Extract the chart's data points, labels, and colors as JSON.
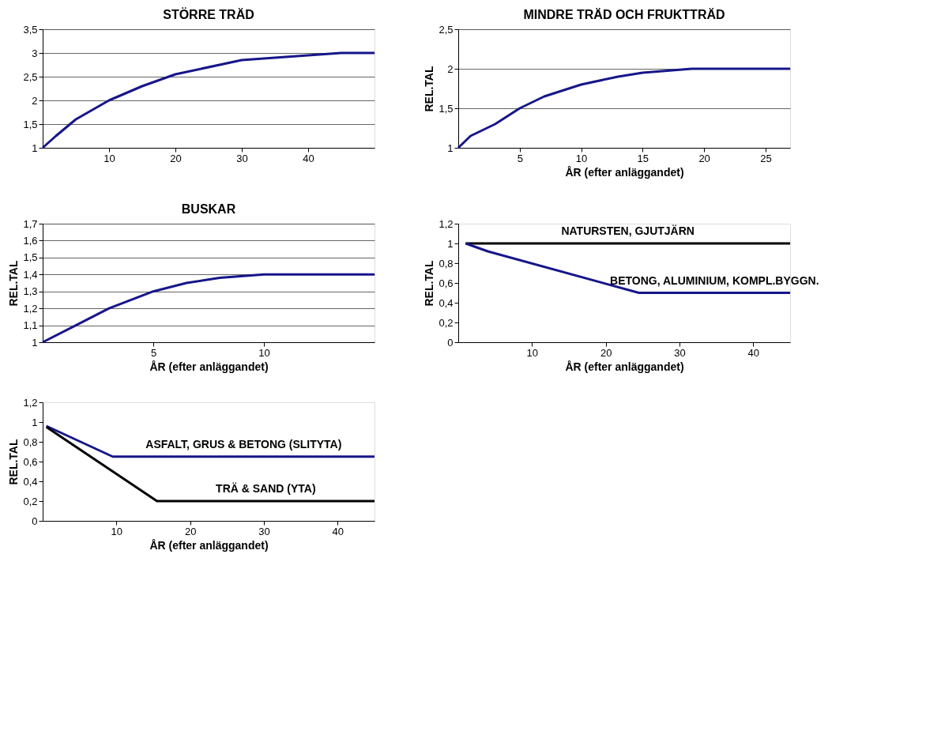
{
  "chart_data": [
    {
      "type": "line",
      "title": "STÖRRE TRÄD",
      "x": [
        0,
        2,
        5,
        10,
        15,
        20,
        30,
        45,
        50
      ],
      "series": [
        {
          "color": "#16168a",
          "values": [
            1,
            1.25,
            1.6,
            2,
            2.3,
            2.55,
            2.85,
            3,
            3
          ]
        }
      ],
      "xlim": [
        0,
        50
      ],
      "xticks": [
        10,
        20,
        30,
        40
      ],
      "ylim": [
        1,
        3.5
      ],
      "yticks": [
        1,
        {
          "value": 1.5,
          "label": "1,5"
        },
        2,
        {
          "value": 2.5,
          "label": "2,5"
        },
        3,
        {
          "value": 3.5,
          "label": "3,5"
        }
      ],
      "grid": "y"
    },
    {
      "type": "line",
      "title": "MINDRE TRÄD OCH FRUKTTRÄD",
      "xlabel": "ÅR (efter anläggandet)",
      "ylabel": "REL.TAL",
      "x": [
        0,
        1,
        3,
        5,
        7,
        10,
        13,
        15,
        19,
        27
      ],
      "series": [
        {
          "color": "#16168a",
          "values": [
            1,
            1.15,
            1.3,
            1.5,
            1.65,
            1.8,
            1.9,
            1.95,
            2,
            2
          ]
        }
      ],
      "xlim": [
        0,
        27
      ],
      "xticks": [
        5,
        10,
        15,
        20,
        25
      ],
      "ylim": [
        1,
        2.5
      ],
      "yticks": [
        1,
        {
          "value": 1.5,
          "label": "1,5"
        },
        2,
        {
          "value": 2.5,
          "label": "2,5"
        }
      ],
      "grid": "y"
    },
    {
      "type": "line",
      "title": "BUSKAR",
      "xlabel": "ÅR (efter anläggandet)",
      "ylabel": "REL.TAL",
      "x": [
        0,
        1.5,
        3,
        5,
        6.5,
        8,
        10,
        15
      ],
      "series": [
        {
          "color": "#16168a",
          "values": [
            1,
            1.1,
            1.2,
            1.3,
            1.35,
            1.38,
            1.4,
            1.4
          ]
        }
      ],
      "xlim": [
        0,
        15
      ],
      "xticks": [
        5,
        10
      ],
      "ylim": [
        1,
        1.7
      ],
      "yticks": [
        1,
        {
          "value": 1.1,
          "label": "1,1"
        },
        {
          "value": 1.2,
          "label": "1,2"
        },
        {
          "value": 1.3,
          "label": "1,3"
        },
        {
          "value": 1.4,
          "label": "1,4"
        },
        {
          "value": 1.5,
          "label": "1,5"
        },
        {
          "value": 1.6,
          "label": "1,6"
        },
        {
          "value": 1.7,
          "label": "1,7"
        }
      ],
      "grid": "y"
    },
    {
      "type": "line",
      "xlabel": "ÅR (efter anläggandet)",
      "ylabel": "REL.TAL",
      "series": [
        {
          "name": "NATURSTEN, GJUTJÄRN",
          "color": "#000000",
          "x": [
            1,
            45
          ],
          "values": [
            1,
            1
          ]
        },
        {
          "name": "BETONG, ALUMINIUM, KOMPL.BYGGN.",
          "color": "#16168a",
          "x": [
            1,
            4,
            24.5,
            45
          ],
          "values": [
            1,
            0.92,
            0.5,
            0.5
          ]
        }
      ],
      "xlim": [
        0,
        45
      ],
      "xticks": [
        10,
        20,
        30,
        40
      ],
      "ylim": [
        0,
        1.2
      ],
      "yticks": [
        0,
        {
          "value": 0.2,
          "label": "0,2"
        },
        {
          "value": 0.4,
          "label": "0,4"
        },
        {
          "value": 0.6,
          "label": "0,6"
        },
        {
          "value": 0.8,
          "label": "0,8"
        },
        1,
        {
          "value": 1.2,
          "label": "1,2"
        }
      ]
    },
    {
      "type": "line",
      "xlabel": "ÅR (efter anläggandet)",
      "ylabel": "REL.TAL",
      "series": [
        {
          "name": "ASFALT, GRUS & BETONG (SLITYTA)",
          "color": "#16168a",
          "x": [
            0.5,
            9.5,
            45
          ],
          "values": [
            0.96,
            0.65,
            0.65
          ]
        },
        {
          "name": "TRÄ & SAND (YTA)",
          "color": "#000000",
          "x": [
            0.5,
            15.5,
            45
          ],
          "values": [
            0.95,
            0.2,
            0.2
          ]
        }
      ],
      "xlim": [
        0,
        45
      ],
      "xticks": [
        10,
        20,
        30,
        40
      ],
      "ylim": [
        0,
        1.2
      ],
      "yticks": [
        0,
        {
          "value": 0.2,
          "label": "0,2"
        },
        {
          "value": 0.4,
          "label": "0,4"
        },
        {
          "value": 0.6,
          "label": "0,6"
        },
        {
          "value": 0.8,
          "label": "0,8"
        },
        1,
        {
          "value": 1.2,
          "label": "1,2"
        }
      ]
    }
  ]
}
